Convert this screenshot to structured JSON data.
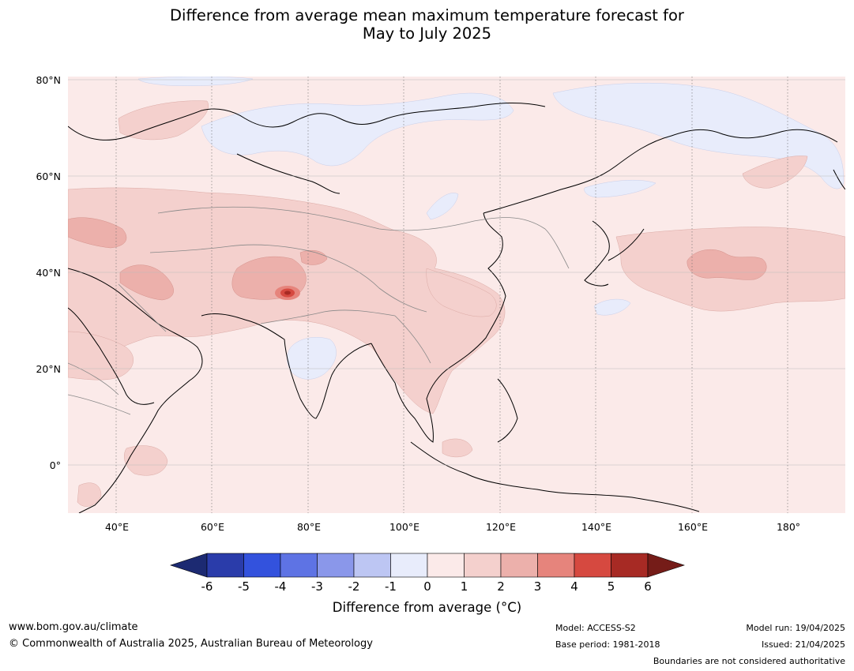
{
  "title": {
    "line1": "Difference from average mean maximum temperature forecast for",
    "line2": "May to July 2025"
  },
  "map": {
    "lat_labels": [
      "80°N",
      "60°N",
      "40°N",
      "20°N",
      "0°"
    ],
    "lon_labels": [
      "40°E",
      "60°E",
      "80°E",
      "100°E",
      "120°E",
      "140°E",
      "160°E",
      "180°"
    ],
    "lat_range": [
      -10,
      81
    ],
    "lon_range": [
      30,
      192
    ],
    "field_note": "Mostly 0 to 1 °C above average; 1–2 °C over Central Asia, the Middle East, Indochina and the North Pacific; up to 4–6 °C in a small spot in the western Himalaya; −1 to 0 °C over northern Siberia, the Arctic coast, the central Indian peninsula and parts of the Sea of Okhotsk"
  },
  "colorbar": {
    "ticks": [
      "-6",
      "-5",
      "-4",
      "-3",
      "-2",
      "-1",
      "0",
      "1",
      "2",
      "3",
      "4",
      "5",
      "6"
    ],
    "colors": {
      "lt_-6": "#1c2a72",
      "b_-6_-5": "#2a3caa",
      "b_-5_-4": "#3352dd",
      "b_-4_-3": "#5e73e4",
      "b_-3_-2": "#8a97ea",
      "b_-2_-1": "#bdc6f3",
      "b_-1_0": "#e8ecfb",
      "b_0_1": "#fbeae9",
      "b_1_2": "#f4d0cd",
      "b_2_3": "#ecb0ab",
      "b_3_4": "#e6847c",
      "b_4_5": "#d64940",
      "b_5_6": "#a72a24",
      "gt_6": "#751c18"
    },
    "label": "Difference from average (°C)"
  },
  "footer": {
    "url": "www.bom.gov.au/climate",
    "copyright": "© Commonwealth of Australia 2025, Australian Bureau of Meteorology",
    "model": "Model: ACCESS-S2",
    "base_period": "Base period: 1981-2018",
    "model_run": "Model run: 19/04/2025",
    "issued": "Issued: 21/04/2025",
    "disclaimer": "Boundaries are not considered authoritative"
  }
}
